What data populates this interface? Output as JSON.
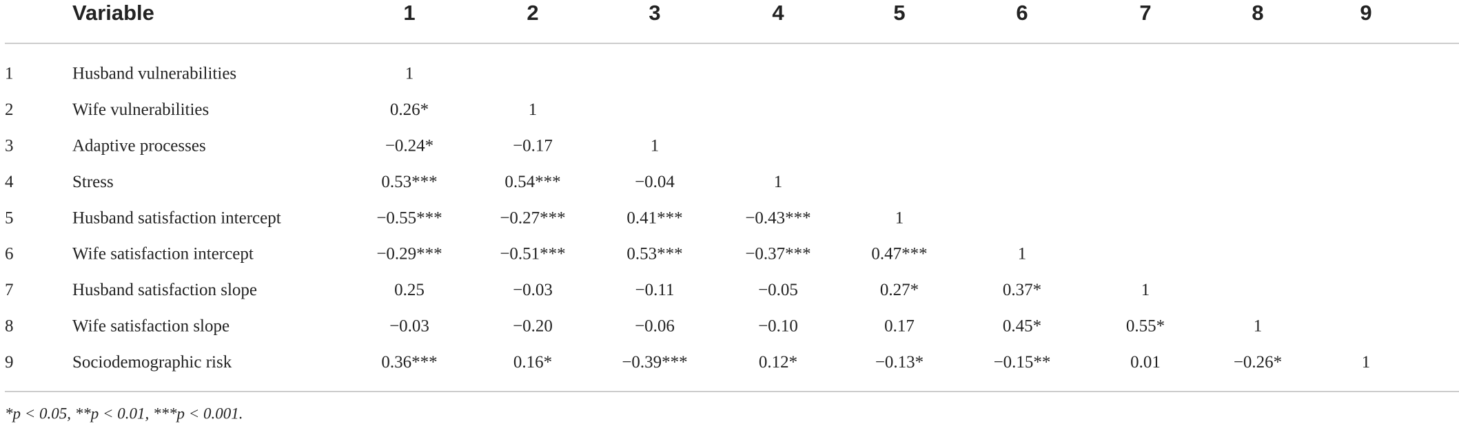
{
  "table": {
    "header": {
      "variable": "Variable",
      "columns": [
        "1",
        "2",
        "3",
        "4",
        "5",
        "6",
        "7",
        "8",
        "9"
      ]
    },
    "rows": [
      {
        "number": "1",
        "variable": "Husband vulnerabilities",
        "cells": [
          "1"
        ]
      },
      {
        "number": "2",
        "variable": "Wife vulnerabilities",
        "cells": [
          "0.26*",
          "1"
        ]
      },
      {
        "number": "3",
        "variable": "Adaptive processes",
        "cells": [
          "−0.24*",
          "−0.17",
          "1"
        ]
      },
      {
        "number": "4",
        "variable": "Stress",
        "cells": [
          "0.53***",
          "0.54***",
          "−0.04",
          "1"
        ]
      },
      {
        "number": "5",
        "variable": "Husband satisfaction intercept",
        "cells": [
          "−0.55***",
          "−0.27***",
          "0.41***",
          "−0.43***",
          "1"
        ]
      },
      {
        "number": "6",
        "variable": "Wife satisfaction intercept",
        "cells": [
          "−0.29***",
          "−0.51***",
          "0.53***",
          "−0.37***",
          "0.47***",
          "1"
        ]
      },
      {
        "number": "7",
        "variable": "Husband satisfaction slope",
        "cells": [
          "0.25",
          "−0.03",
          "−0.11",
          "−0.05",
          "0.27*",
          "0.37*",
          "1"
        ]
      },
      {
        "number": "8",
        "variable": "Wife satisfaction slope",
        "cells": [
          "−0.03",
          "−0.20",
          "−0.06",
          "−0.10",
          "0.17",
          "0.45*",
          "0.55*",
          "1"
        ]
      },
      {
        "number": "9",
        "variable": "Sociodemographic risk",
        "cells": [
          "0.36***",
          "0.16*",
          "−0.39***",
          "0.12*",
          "−0.13*",
          "−0.15**",
          "0.01",
          "−0.26*",
          "1"
        ]
      }
    ],
    "footnote": "*p < 0.05, **p < 0.01, ***p < 0.001."
  }
}
